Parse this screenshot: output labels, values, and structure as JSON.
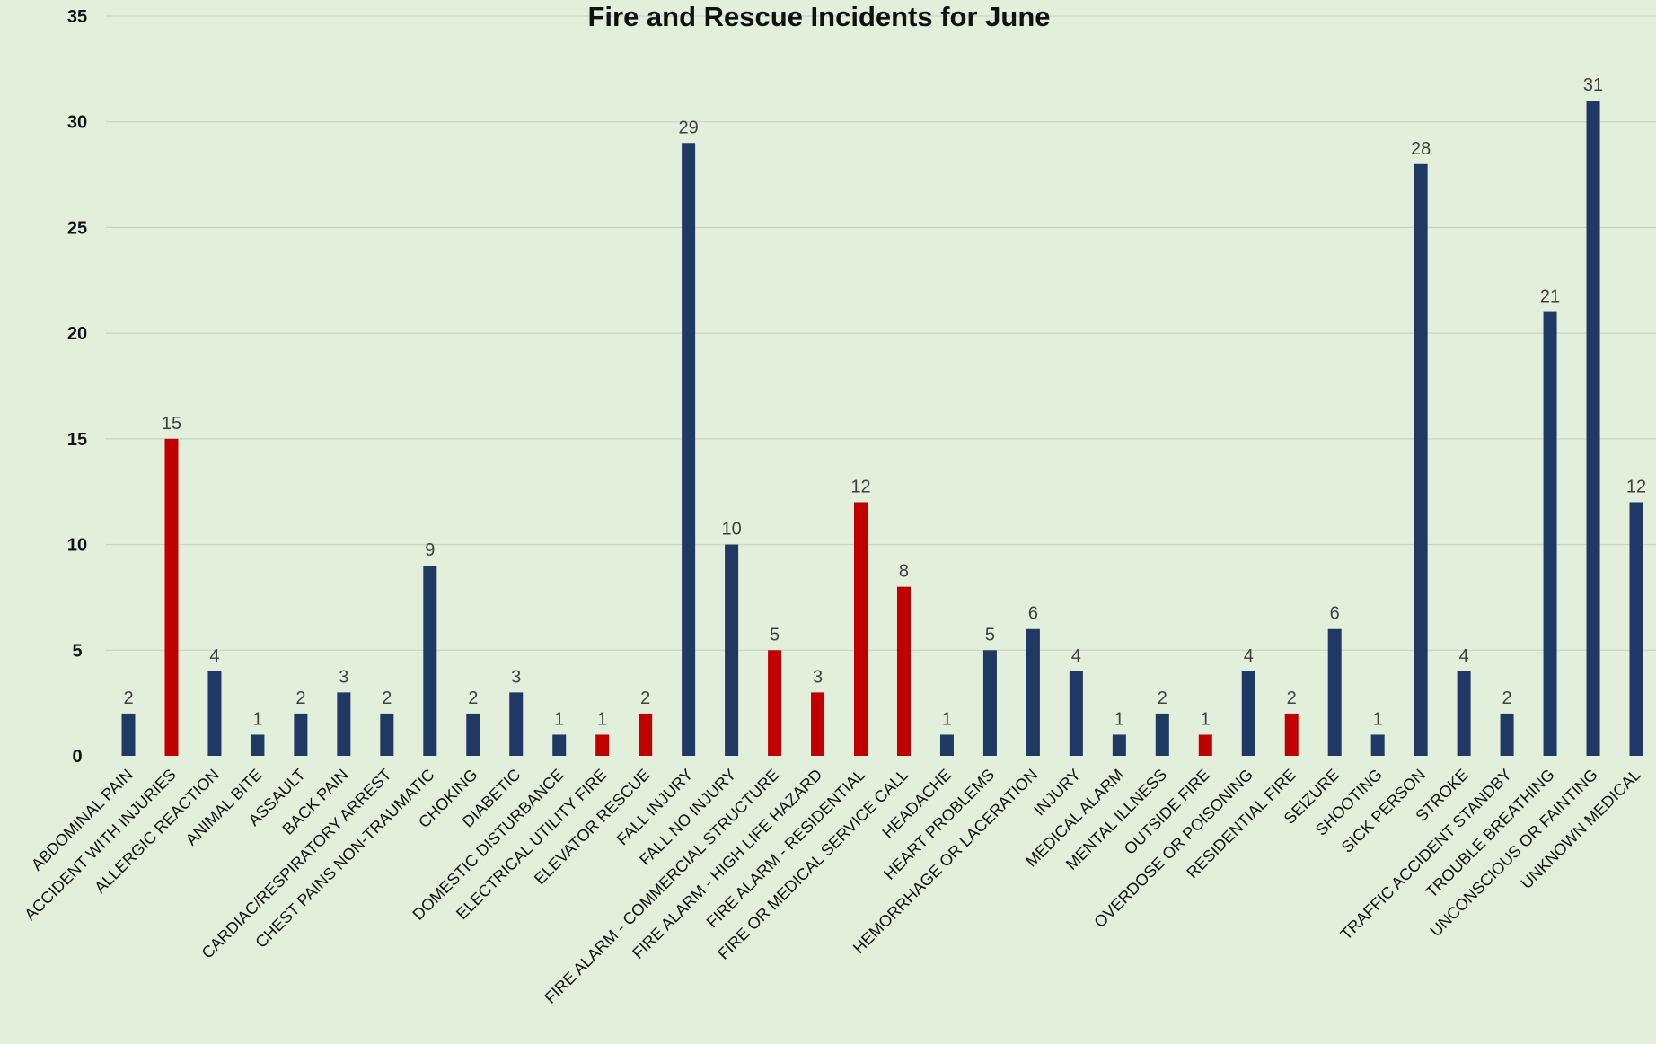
{
  "chart_data": {
    "type": "bar",
    "title": "Fire and Rescue Incidents for June",
    "xlabel": "",
    "ylabel": "",
    "ylim": [
      0,
      35
    ],
    "yticks": [
      0,
      5,
      10,
      15,
      20,
      25,
      30,
      35
    ],
    "grid": true,
    "legend": "none",
    "colors": {
      "medical": "#1f3864",
      "fire": "#c00000",
      "background": "#e2efda"
    },
    "categories": [
      "ABDOMINAL PAIN",
      "ACCIDENT WITH INJURIES",
      "ALLERGIC REACTION",
      "ANIMAL BITE",
      "ASSAULT",
      "BACK PAIN",
      "CARDIAC/RESPIRATORY ARREST",
      "CHEST PAINS NON-TRAUMATIC",
      "CHOKING",
      "DIABETIC",
      "DOMESTIC DISTURBANCE",
      "ELECTRICAL UTILITY FIRE",
      "ELEVATOR RESCUE",
      "FALL INJURY",
      "FALL NO INJURY",
      "FIRE ALARM - COMMERCIAL STRUCTURE",
      "FIRE ALARM - HIGH LIFE HAZARD",
      "FIRE ALARM - RESIDENTIAL",
      "FIRE OR MEDICAL SERVICE CALL",
      "HEADACHE",
      "HEART PROBLEMS",
      "HEMORRHAGE OR LACERATION",
      "INJURY",
      "MEDICAL ALARM",
      "MENTAL ILLNESS",
      "OUTSIDE FIRE",
      "OVERDOSE OR POISONING",
      "RESIDENTIAL FIRE",
      "SEIZURE",
      "SHOOTING",
      "SICK PERSON",
      "STROKE",
      "TRAFFIC ACCIDENT STANDBY",
      "TROUBLE BREATHING",
      "UNCONSCIOUS OR FAINTING",
      "UNKNOWN MEDICAL"
    ],
    "values": [
      2,
      15,
      4,
      1,
      2,
      3,
      2,
      9,
      2,
      3,
      1,
      1,
      2,
      29,
      10,
      5,
      3,
      12,
      8,
      1,
      5,
      6,
      4,
      1,
      2,
      1,
      4,
      2,
      6,
      1,
      28,
      4,
      2,
      21,
      31,
      12
    ],
    "bar_colors": [
      "#1f3864",
      "#c00000",
      "#1f3864",
      "#1f3864",
      "#1f3864",
      "#1f3864",
      "#1f3864",
      "#1f3864",
      "#1f3864",
      "#1f3864",
      "#1f3864",
      "#c00000",
      "#c00000",
      "#1f3864",
      "#1f3864",
      "#c00000",
      "#c00000",
      "#c00000",
      "#c00000",
      "#1f3864",
      "#1f3864",
      "#1f3864",
      "#1f3864",
      "#1f3864",
      "#1f3864",
      "#c00000",
      "#1f3864",
      "#c00000",
      "#1f3864",
      "#1f3864",
      "#1f3864",
      "#1f3864",
      "#1f3864",
      "#1f3864",
      "#1f3864",
      "#1f3864"
    ]
  }
}
